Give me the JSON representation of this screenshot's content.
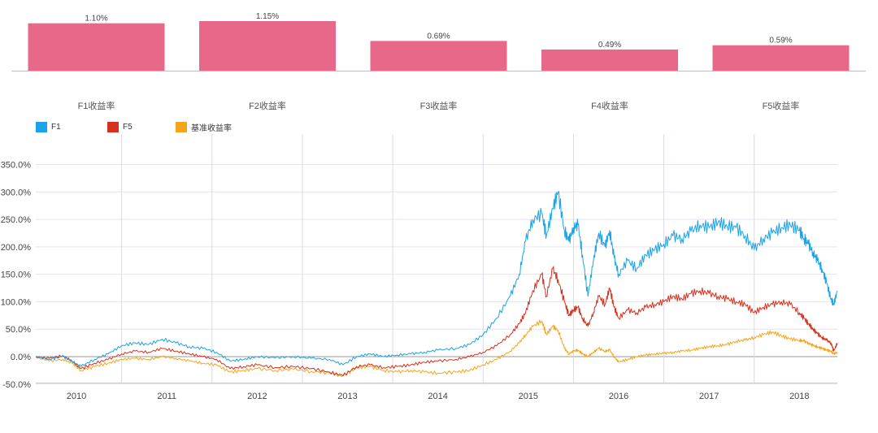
{
  "chart_data": [
    {
      "type": "bar",
      "categories": [
        "F1收益率",
        "F2收益率",
        "F3收益率",
        "F4收益率",
        "F5收益率"
      ],
      "values": [
        1.1,
        1.15,
        0.69,
        0.49,
        0.59
      ],
      "labels": [
        "1.10%",
        "1.15%",
        "0.69%",
        "0.49%",
        "0.59%"
      ],
      "unit": "%",
      "color": "#e8688a",
      "ylim": [
        0,
        1.2
      ]
    },
    {
      "type": "line",
      "x_ticks": [
        "2010",
        "2011",
        "2012",
        "2013",
        "2014",
        "2015",
        "2016",
        "2017",
        "2018"
      ],
      "y_ticks": [
        "-50.0%",
        "0.0%",
        "50.0%",
        "100.0%",
        "150.0%",
        "200.0%",
        "250.0%",
        "300.0%",
        "350.0%"
      ],
      "ylim": [
        -50,
        350
      ],
      "xlim": [
        2009.55,
        2018.42
      ],
      "grid": true,
      "legend_position": "top-left",
      "series": [
        {
          "name": "F1",
          "color": "#1aa3e8",
          "points": [
            [
              2009.55,
              0
            ],
            [
              2009.7,
              -5
            ],
            [
              2009.85,
              0
            ],
            [
              2009.95,
              -8
            ],
            [
              2010.05,
              -18
            ],
            [
              2010.2,
              -5
            ],
            [
              2010.35,
              5
            ],
            [
              2010.5,
              20
            ],
            [
              2010.65,
              25
            ],
            [
              2010.8,
              22
            ],
            [
              2010.95,
              32
            ],
            [
              2011.1,
              25
            ],
            [
              2011.25,
              18
            ],
            [
              2011.4,
              15
            ],
            [
              2011.55,
              8
            ],
            [
              2011.7,
              -8
            ],
            [
              2011.85,
              -5
            ],
            [
              2012.0,
              0
            ],
            [
              2012.2,
              -2
            ],
            [
              2012.4,
              0
            ],
            [
              2012.6,
              -3
            ],
            [
              2012.8,
              -5
            ],
            [
              2012.95,
              -15
            ],
            [
              2013.1,
              0
            ],
            [
              2013.25,
              5
            ],
            [
              2013.4,
              0
            ],
            [
              2013.55,
              3
            ],
            [
              2013.7,
              5
            ],
            [
              2013.85,
              8
            ],
            [
              2014.0,
              12
            ],
            [
              2014.2,
              15
            ],
            [
              2014.35,
              22
            ],
            [
              2014.5,
              40
            ],
            [
              2014.65,
              70
            ],
            [
              2014.8,
              110
            ],
            [
              2014.9,
              150
            ],
            [
              2014.97,
              210
            ],
            [
              2015.05,
              250
            ],
            [
              2015.15,
              260
            ],
            [
              2015.2,
              220
            ],
            [
              2015.27,
              270
            ],
            [
              2015.33,
              300
            ],
            [
              2015.4,
              230
            ],
            [
              2015.45,
              210
            ],
            [
              2015.5,
              235
            ],
            [
              2015.55,
              240
            ],
            [
              2015.6,
              185
            ],
            [
              2015.66,
              110
            ],
            [
              2015.72,
              175
            ],
            [
              2015.78,
              225
            ],
            [
              2015.85,
              200
            ],
            [
              2015.9,
              230
            ],
            [
              2015.95,
              180
            ],
            [
              2016.0,
              150
            ],
            [
              2016.1,
              175
            ],
            [
              2016.2,
              160
            ],
            [
              2016.3,
              185
            ],
            [
              2016.4,
              195
            ],
            [
              2016.5,
              205
            ],
            [
              2016.6,
              220
            ],
            [
              2016.7,
              215
            ],
            [
              2016.8,
              228
            ],
            [
              2016.9,
              240
            ],
            [
              2017.0,
              235
            ],
            [
              2017.1,
              245
            ],
            [
              2017.2,
              238
            ],
            [
              2017.3,
              235
            ],
            [
              2017.4,
              220
            ],
            [
              2017.5,
              195
            ],
            [
              2017.6,
              215
            ],
            [
              2017.7,
              225
            ],
            [
              2017.8,
              235
            ],
            [
              2017.9,
              240
            ],
            [
              2018.0,
              230
            ],
            [
              2018.05,
              215
            ],
            [
              2018.1,
              205
            ],
            [
              2018.15,
              190
            ],
            [
              2018.2,
              175
            ],
            [
              2018.25,
              160
            ],
            [
              2018.3,
              135
            ],
            [
              2018.35,
              105
            ],
            [
              2018.38,
              95
            ],
            [
              2018.42,
              120
            ]
          ]
        },
        {
          "name": "F5",
          "color": "#d8301c",
          "points": [
            [
              2009.55,
              0
            ],
            [
              2009.7,
              -3
            ],
            [
              2009.85,
              2
            ],
            [
              2009.95,
              -8
            ],
            [
              2010.05,
              -22
            ],
            [
              2010.2,
              -12
            ],
            [
              2010.35,
              -5
            ],
            [
              2010.5,
              5
            ],
            [
              2010.65,
              10
            ],
            [
              2010.8,
              8
            ],
            [
              2010.95,
              15
            ],
            [
              2011.1,
              10
            ],
            [
              2011.25,
              5
            ],
            [
              2011.4,
              0
            ],
            [
              2011.55,
              -5
            ],
            [
              2011.7,
              -22
            ],
            [
              2011.85,
              -18
            ],
            [
              2012.0,
              -15
            ],
            [
              2012.2,
              -20
            ],
            [
              2012.4,
              -18
            ],
            [
              2012.6,
              -22
            ],
            [
              2012.8,
              -28
            ],
            [
              2012.95,
              -35
            ],
            [
              2013.1,
              -18
            ],
            [
              2013.25,
              -15
            ],
            [
              2013.4,
              -20
            ],
            [
              2013.55,
              -18
            ],
            [
              2013.7,
              -15
            ],
            [
              2013.85,
              -10
            ],
            [
              2014.0,
              -8
            ],
            [
              2014.2,
              -5
            ],
            [
              2014.35,
              0
            ],
            [
              2014.5,
              8
            ],
            [
              2014.65,
              20
            ],
            [
              2014.8,
              40
            ],
            [
              2014.9,
              60
            ],
            [
              2014.97,
              80
            ],
            [
              2015.05,
              120
            ],
            [
              2015.15,
              150
            ],
            [
              2015.2,
              110
            ],
            [
              2015.27,
              160
            ],
            [
              2015.33,
              140
            ],
            [
              2015.4,
              100
            ],
            [
              2015.45,
              75
            ],
            [
              2015.5,
              85
            ],
            [
              2015.55,
              90
            ],
            [
              2015.6,
              70
            ],
            [
              2015.66,
              55
            ],
            [
              2015.72,
              80
            ],
            [
              2015.78,
              110
            ],
            [
              2015.85,
              95
            ],
            [
              2015.9,
              125
            ],
            [
              2015.95,
              90
            ],
            [
              2016.0,
              70
            ],
            [
              2016.1,
              85
            ],
            [
              2016.2,
              80
            ],
            [
              2016.3,
              90
            ],
            [
              2016.4,
              95
            ],
            [
              2016.5,
              100
            ],
            [
              2016.6,
              110
            ],
            [
              2016.7,
              105
            ],
            [
              2016.8,
              115
            ],
            [
              2016.9,
              120
            ],
            [
              2017.0,
              115
            ],
            [
              2017.1,
              110
            ],
            [
              2017.2,
              105
            ],
            [
              2017.3,
              100
            ],
            [
              2017.4,
              95
            ],
            [
              2017.5,
              80
            ],
            [
              2017.6,
              90
            ],
            [
              2017.7,
              95
            ],
            [
              2017.8,
              100
            ],
            [
              2017.9,
              95
            ],
            [
              2018.0,
              80
            ],
            [
              2018.05,
              70
            ],
            [
              2018.1,
              60
            ],
            [
              2018.15,
              50
            ],
            [
              2018.2,
              42
            ],
            [
              2018.25,
              35
            ],
            [
              2018.3,
              30
            ],
            [
              2018.35,
              25
            ],
            [
              2018.38,
              10
            ],
            [
              2018.42,
              25
            ]
          ]
        },
        {
          "name": "基准收益率",
          "color": "#f5a51c",
          "points": [
            [
              2009.55,
              0
            ],
            [
              2009.7,
              -8
            ],
            [
              2009.85,
              -5
            ],
            [
              2009.95,
              -12
            ],
            [
              2010.05,
              -25
            ],
            [
              2010.2,
              -18
            ],
            [
              2010.35,
              -12
            ],
            [
              2010.5,
              -5
            ],
            [
              2010.65,
              -3
            ],
            [
              2010.8,
              -5
            ],
            [
              2010.95,
              0
            ],
            [
              2011.1,
              -3
            ],
            [
              2011.25,
              -8
            ],
            [
              2011.4,
              -12
            ],
            [
              2011.55,
              -15
            ],
            [
              2011.7,
              -28
            ],
            [
              2011.85,
              -25
            ],
            [
              2012.0,
              -22
            ],
            [
              2012.2,
              -25
            ],
            [
              2012.4,
              -23
            ],
            [
              2012.6,
              -27
            ],
            [
              2012.8,
              -30
            ],
            [
              2012.95,
              -35
            ],
            [
              2013.1,
              -20
            ],
            [
              2013.25,
              -18
            ],
            [
              2013.4,
              -25
            ],
            [
              2013.55,
              -28
            ],
            [
              2013.7,
              -25
            ],
            [
              2013.85,
              -28
            ],
            [
              2014.0,
              -30
            ],
            [
              2014.2,
              -28
            ],
            [
              2014.35,
              -25
            ],
            [
              2014.5,
              -15
            ],
            [
              2014.65,
              -5
            ],
            [
              2014.8,
              10
            ],
            [
              2014.9,
              25
            ],
            [
              2014.97,
              40
            ],
            [
              2015.05,
              55
            ],
            [
              2015.15,
              65
            ],
            [
              2015.2,
              40
            ],
            [
              2015.27,
              55
            ],
            [
              2015.33,
              48
            ],
            [
              2015.4,
              15
            ],
            [
              2015.45,
              5
            ],
            [
              2015.5,
              10
            ],
            [
              2015.55,
              12
            ],
            [
              2015.6,
              5
            ],
            [
              2015.66,
              0
            ],
            [
              2015.72,
              8
            ],
            [
              2015.78,
              15
            ],
            [
              2015.85,
              10
            ],
            [
              2015.9,
              12
            ],
            [
              2015.95,
              0
            ],
            [
              2016.0,
              -10
            ],
            [
              2016.1,
              -5
            ],
            [
              2016.2,
              0
            ],
            [
              2016.3,
              3
            ],
            [
              2016.4,
              5
            ],
            [
              2016.5,
              6
            ],
            [
              2016.6,
              8
            ],
            [
              2016.7,
              10
            ],
            [
              2016.8,
              12
            ],
            [
              2016.9,
              15
            ],
            [
              2017.0,
              18
            ],
            [
              2017.1,
              20
            ],
            [
              2017.2,
              22
            ],
            [
              2017.3,
              28
            ],
            [
              2017.4,
              30
            ],
            [
              2017.5,
              35
            ],
            [
              2017.6,
              40
            ],
            [
              2017.7,
              45
            ],
            [
              2017.8,
              38
            ],
            [
              2017.9,
              32
            ],
            [
              2018.0,
              30
            ],
            [
              2018.05,
              28
            ],
            [
              2018.1,
              25
            ],
            [
              2018.15,
              20
            ],
            [
              2018.2,
              18
            ],
            [
              2018.25,
              15
            ],
            [
              2018.3,
              12
            ],
            [
              2018.35,
              10
            ],
            [
              2018.38,
              5
            ],
            [
              2018.42,
              8
            ]
          ]
        }
      ]
    }
  ]
}
